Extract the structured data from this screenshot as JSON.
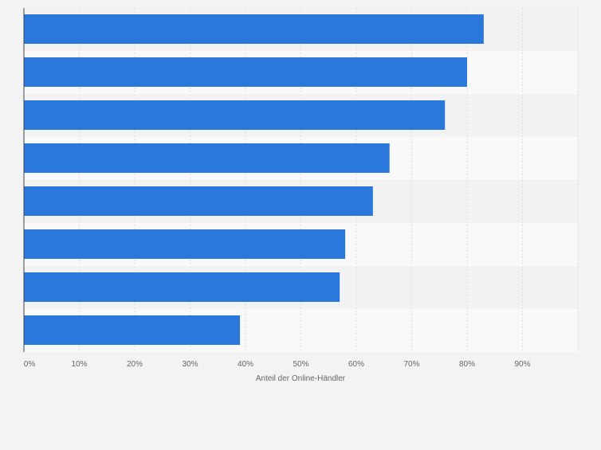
{
  "colors": {
    "bar": "#2a78dc",
    "background": "#f3f3f3",
    "band_light": "#f9f9f9",
    "band_dark": "#f2f2f2",
    "grid": "#dddddd",
    "axis": "#444444",
    "tick_text": "#666666"
  },
  "chart_data": {
    "type": "bar",
    "orientation": "horizontal",
    "title": "",
    "xlabel": "Anteil der Online-Händler",
    "ylabel": "",
    "xlim": [
      0,
      100
    ],
    "x_ticks": [
      0,
      10,
      20,
      30,
      40,
      50,
      60,
      70,
      80,
      90
    ],
    "tick_labels": [
      "0%",
      "10%",
      "20%",
      "30%",
      "40%",
      "50%",
      "60%",
      "70%",
      "80%",
      "90%"
    ],
    "grid": true,
    "categories": [
      "",
      "",
      "",
      "",
      "",
      "",
      "",
      ""
    ],
    "values": [
      83,
      80,
      76,
      66,
      63,
      58,
      57,
      39
    ],
    "unit": "%"
  }
}
